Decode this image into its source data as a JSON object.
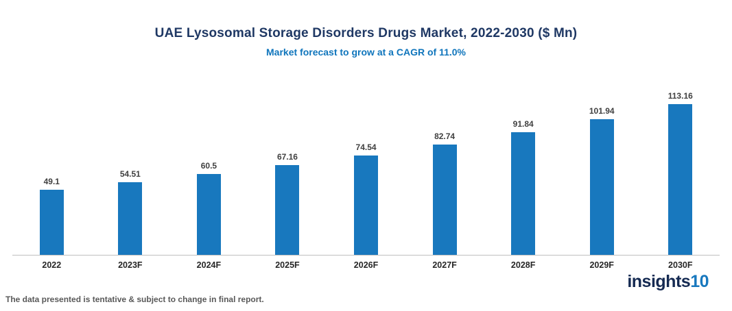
{
  "title": "UAE Lysosomal Storage Disorders Drugs Market, 2022-2030 ($ Mn)",
  "subtitle": "Market forecast to grow at a CAGR of 11.0%",
  "footer_note": "The data presented is tentative & subject to change in final report.",
  "logo": {
    "text_main": "insights",
    "text_suffix": "10"
  },
  "colors": {
    "bar": "#1878BE",
    "title": "#1F3864",
    "subtitle": "#0F75BC",
    "axis": "#BFBFBF"
  },
  "chart_data": {
    "type": "bar",
    "title": "UAE Lysosomal Storage Disorders Drugs Market, 2022-2030 ($ Mn)",
    "subtitle": "Market forecast to grow at a CAGR of 11.0%",
    "categories": [
      "2022",
      "2023F",
      "2024F",
      "2025F",
      "2026F",
      "2027F",
      "2028F",
      "2029F",
      "2030F"
    ],
    "values": [
      49.1,
      54.51,
      60.5,
      67.16,
      74.54,
      82.74,
      91.84,
      101.94,
      113.16
    ],
    "xlabel": "",
    "ylabel": "",
    "ylim": [
      0,
      120
    ],
    "grid": false,
    "legend": "none",
    "value_labels": true,
    "bar_color": "#1878BE"
  }
}
